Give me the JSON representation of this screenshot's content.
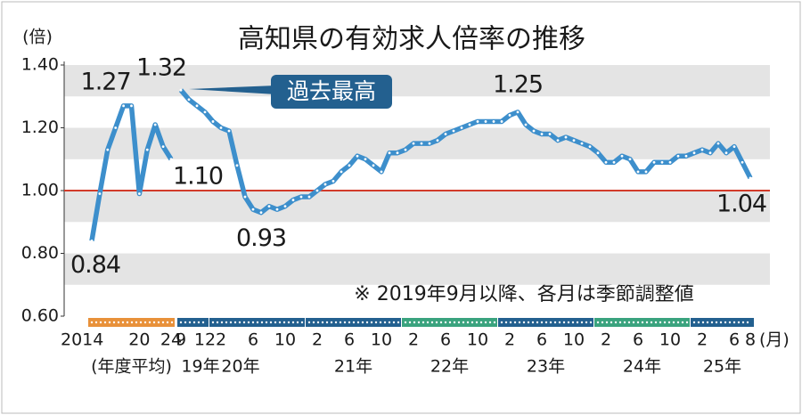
{
  "chart_data": {
    "type": "line",
    "title": "高知県の有効求人倍率の推移",
    "y_unit": "(倍)",
    "x_unit": "(月)",
    "note": "※ 2019年9月以降、各月は季節調整値",
    "callout": "過去最高",
    "ylim": [
      0.6,
      1.4
    ],
    "yticks": [
      {
        "value": 0.6,
        "label": "0.60"
      },
      {
        "value": 0.8,
        "label": "0.80"
      },
      {
        "value": 1.0,
        "label": "1.00"
      },
      {
        "value": 1.2,
        "label": "1.20"
      },
      {
        "value": 1.4,
        "label": "1.40"
      }
    ],
    "reference_line": {
      "value": 1.0,
      "color": "#d23b2a"
    },
    "grid": true,
    "series": [
      {
        "color": "#3d8fcc",
        "categories": [
          "2014",
          null,
          null,
          null,
          null,
          null,
          "20",
          null,
          null,
          null,
          "24"
        ],
        "values": [
          0.84,
          0.99,
          1.13,
          1.2,
          1.27,
          1.27,
          0.99,
          1.13,
          1.21,
          1.14,
          1.1
        ],
        "value_labels": [
          "0.84",
          null,
          null,
          null,
          "1.27",
          null,
          null,
          null,
          null,
          null,
          "1.10"
        ]
      },
      {
        "color": "#3d8fcc",
        "categories": [
          "9",
          null,
          null,
          "12",
          null,
          "2",
          null,
          null,
          null,
          "6",
          null,
          null,
          null,
          "10",
          null,
          null,
          null,
          "2",
          null,
          null,
          null,
          "6",
          null,
          null,
          null,
          "10",
          null,
          null,
          null,
          "2",
          null,
          null,
          null,
          "6",
          null,
          null,
          null,
          "10",
          null,
          null,
          null,
          "2",
          null,
          null,
          null,
          "6",
          null,
          null,
          null,
          "10",
          null,
          null,
          null,
          "2",
          null,
          null,
          null,
          "6",
          null,
          null,
          null,
          "10",
          null,
          null,
          null,
          "2",
          null,
          null,
          null,
          "6",
          null,
          "8"
        ],
        "values": [
          1.32,
          1.29,
          1.27,
          1.25,
          1.22,
          1.2,
          1.19,
          1.08,
          0.98,
          0.94,
          0.93,
          0.95,
          0.94,
          0.95,
          0.97,
          0.98,
          0.98,
          1.0,
          1.02,
          1.03,
          1.06,
          1.08,
          1.11,
          1.1,
          1.08,
          1.06,
          1.12,
          1.12,
          1.13,
          1.15,
          1.15,
          1.15,
          1.16,
          1.18,
          1.19,
          1.2,
          1.21,
          1.22,
          1.22,
          1.22,
          1.22,
          1.24,
          1.25,
          1.21,
          1.19,
          1.18,
          1.18,
          1.16,
          1.17,
          1.16,
          1.15,
          1.14,
          1.12,
          1.09,
          1.09,
          1.11,
          1.1,
          1.06,
          1.06,
          1.09,
          1.09,
          1.09,
          1.11,
          1.11,
          1.12,
          1.13,
          1.12,
          1.15,
          1.12,
          1.14,
          1.09,
          1.04
        ],
        "value_labels": [
          "1.32",
          null,
          null,
          null,
          null,
          null,
          null,
          null,
          null,
          null,
          "0.93",
          null,
          null,
          null,
          null,
          null,
          null,
          null,
          null,
          null,
          null,
          null,
          null,
          null,
          null,
          null,
          null,
          null,
          null,
          null,
          null,
          null,
          null,
          null,
          null,
          null,
          null,
          null,
          null,
          null,
          null,
          null,
          "1.25",
          null,
          null,
          null,
          null,
          null,
          null,
          null,
          null,
          null,
          null,
          null,
          null,
          null,
          null,
          null,
          null,
          null,
          null,
          null,
          null,
          null,
          null,
          null,
          null,
          null,
          null,
          null,
          null,
          "1.04"
        ]
      }
    ],
    "groups": [
      {
        "label": "(年度平均)",
        "color": "#e8913a"
      },
      {
        "label": "19年",
        "color": "#23608f"
      },
      {
        "label": "20年",
        "color": "#23608f"
      },
      {
        "label": "21年",
        "color": "#23608f"
      },
      {
        "label": "22年",
        "color": "#3aa37e"
      },
      {
        "label": "23年",
        "color": "#23608f"
      },
      {
        "label": "24年",
        "color": "#3aa37e"
      },
      {
        "label": "25年",
        "color": "#23608f"
      }
    ]
  }
}
